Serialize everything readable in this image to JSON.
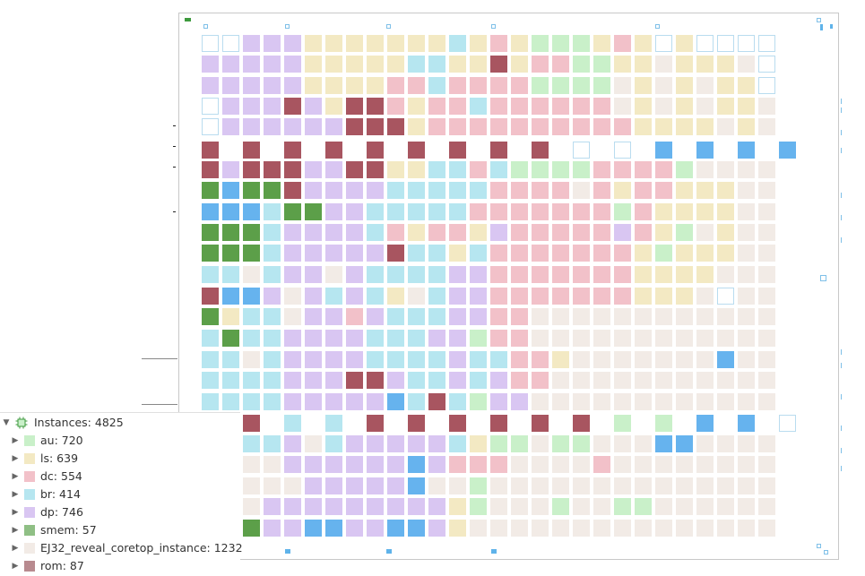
{
  "colors": {
    "au": "#c9f0c9",
    "ls": "#f3e9c3",
    "dc": "#f2c1c9",
    "br": "#b6e6f0",
    "dp": "#d9c6f2",
    "smem": "#5c9f49",
    "ej": "#f2ebe6",
    "rom": "#a85560",
    "blue": "#66b3ee",
    "white": "#ffffff",
    "faint": "#f8f5f3"
  },
  "instances": {
    "root_label": "Instances: 4825",
    "root_icon": "chip-icon",
    "items": [
      {
        "key": "au",
        "label": "au: 720"
      },
      {
        "key": "ls",
        "label": "ls: 639"
      },
      {
        "key": "dc",
        "label": "dc: 554"
      },
      {
        "key": "br",
        "label": "br: 414"
      },
      {
        "key": "dp",
        "label": "dp: 746"
      },
      {
        "key": "smem",
        "label": "smem: 57"
      },
      {
        "key": "ej",
        "label": "EJ32_reveal_coretop_instance: 1232"
      },
      {
        "key": "rom",
        "label": "rom: 87"
      }
    ]
  },
  "grid": {
    "cols": 30,
    "code_legend": {
      "W": "white",
      "A": "au",
      "L": "ls",
      "D": "dc",
      "B": "br",
      "P": "dp",
      "G": "smem",
      "E": "ej",
      "R": "rom",
      "U": "blue",
      "F": "faint",
      "_": "none"
    },
    "rows": [
      "WWPPPLLLLLLLBLDLAAALDLWLWWWW",
      "PPPPPLLLLLBBLLRLDDAALLELLLEW",
      "PPPPPLLLLDDBDDDDAAAAELELELLW",
      "WPPPRPLRRDLDDBDDDDDDELELELLE",
      "WPPPPPPRRRLDDDDDDDDDDLLLLELE",
      "R_R_R_R_R_R_R_R_R_W_W_U_U_U_U",
      "RPRRRPPRRLLBBDBAAAADDDDAEEEE",
      "GUGGRPPPPBBBBBDDDDEDLDDLLLEE",
      "UUUBGGPPBBBBBDDDDDDDADLLLLEE",
      "GGGBPPPPBDLDDLPDDDDDPDLAELEE",
      "GGGBPPPPPRBBLBDDDDDDDLALLLEE",
      "BBEBPPEPBBBBPPDDDDDDDLLLLEEE",
      "RUUPEPBPBLEBPPDDDDDDDLLLEWEE",
      "GLBBEPPDPBBBPPDDEEEEEEEEEEEE",
      "BGBBPPPPBBBPPADDEEEEEEEEEEEE",
      "BBEBPPPPBBBBPBBDDLEEEEEEEUEE",
      "BBBBPPPRRPBBPBPDDEEEEEEEEEEE",
      "BBBBPPPPPUBRBAPPEEEEEEEEEEEE"
    ],
    "lower_rows": [
      "E_R_B_B_R_R_R_R_R_R_A_A_U_U_W",
      "FFBBPEBPPPPPBLAAEAAEEEUUEEEE",
      "FFEEPPPPPPUPDDDEEEEDEEEEEEEE",
      "FFEEEPPPPPUEEAEEEEEEEEEEEEEE",
      "FAEPPPPPPPPPLAEEEAEEAAEEEEEE",
      "FAGPPUUPPUUPLEEEEEEEEEEEEEEE"
    ]
  }
}
